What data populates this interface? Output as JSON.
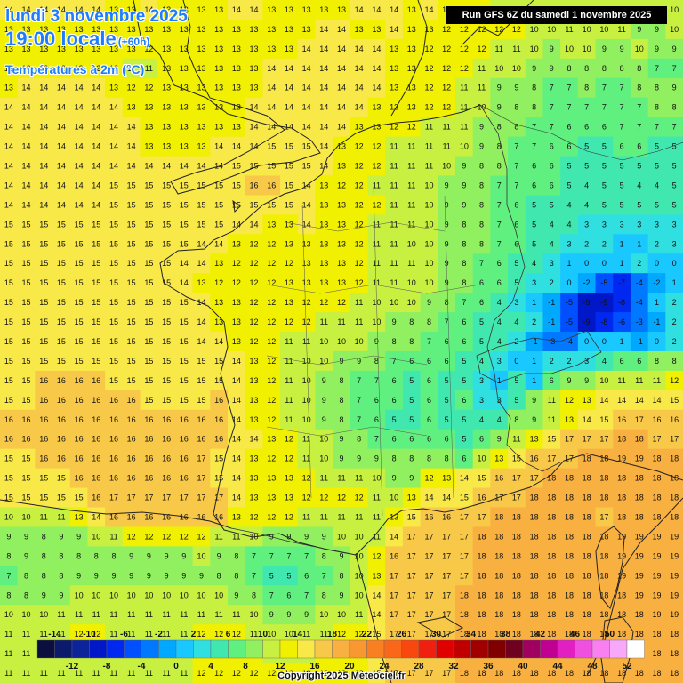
{
  "title": {
    "date": "lundi 3 novembre 2025",
    "time": "19:00 locale",
    "lead": "(+60h)",
    "variable": "Températures à 2m (°C)"
  },
  "run": "Run GFS 6Z du samedi 1 novembre 2025",
  "copyright": "Copyright 2025 Meteociel.fr",
  "legend": {
    "top_labels": [
      "-14",
      "-10",
      "-6",
      "-2",
      "2",
      "6",
      "10",
      "14",
      "18",
      "22",
      "26",
      "30",
      "34",
      "38",
      "42",
      "46",
      "50"
    ],
    "bottom_labels": [
      "-12",
      "-8",
      "-4",
      "0",
      "4",
      "8",
      "12",
      "16",
      "20",
      "24",
      "28",
      "32",
      "36",
      "40",
      "44",
      "48",
      "52"
    ],
    "colors": [
      "#0a0f3d",
      "#0b1a6a",
      "#0c2399",
      "#0018c8",
      "#0028f0",
      "#0050ff",
      "#0078ff",
      "#00a8ff",
      "#18c8ff",
      "#30e0e0",
      "#40e8b0",
      "#60f080",
      "#90f060",
      "#c8f040",
      "#f0f000",
      "#f8e848",
      "#f8c848",
      "#f8b040",
      "#f89830",
      "#f88020",
      "#f86818",
      "#f84810",
      "#f02010",
      "#e00000",
      "#c00000",
      "#a00000",
      "#800000",
      "#700020",
      "#a00060",
      "#c00090",
      "#e020c0",
      "#f050e0",
      "#f880f0",
      "#f8a8f8",
      "#ffffff"
    ]
  },
  "chart_data": {
    "type": "heatmap",
    "title": "Températures à 2m (°C)",
    "grid_spacing_approx": "0.25 deg",
    "sample_rows": {
      "top_row": [
        14,
        14,
        14,
        14,
        14,
        14,
        13,
        13,
        14,
        13,
        13,
        13,
        13,
        14,
        14,
        13,
        13,
        13,
        13,
        13,
        14,
        14,
        14,
        13,
        14,
        13
      ],
      "paris_region": [
        13,
        13,
        13,
        14,
        14,
        14
      ],
      "alps_min": -9,
      "corsica_max": 19,
      "mediterranean_range": [
        16,
        19
      ]
    },
    "grid": [
      [
        14,
        14,
        14,
        14,
        14,
        14,
        13,
        13,
        14,
        13,
        13,
        13,
        13,
        14,
        14,
        13,
        13,
        13,
        13,
        13,
        14,
        14,
        14,
        13,
        14,
        13,
        12,
        12,
        10,
        11,
        10,
        11,
        10,
        10,
        10,
        10,
        11,
        10,
        10
      ],
      [
        13,
        13,
        13,
        13,
        13,
        13,
        13,
        13,
        13,
        13,
        13,
        13,
        13,
        13,
        13,
        13,
        13,
        13,
        14,
        14,
        13,
        13,
        14,
        13,
        13,
        12,
        12,
        12,
        12,
        12,
        10,
        10,
        11,
        10,
        10,
        11,
        9,
        9,
        10
      ],
      [
        13,
        13,
        13,
        13,
        13,
        13,
        13,
        13,
        12,
        13,
        13,
        13,
        13,
        13,
        13,
        13,
        13,
        14,
        14,
        14,
        14,
        14,
        13,
        13,
        12,
        12,
        12,
        12,
        11,
        11,
        10,
        9,
        10,
        10,
        9,
        9,
        10,
        9,
        9
      ],
      [
        12,
        12,
        12,
        12,
        12,
        12,
        12,
        11,
        11,
        13,
        13,
        13,
        13,
        13,
        13,
        14,
        14,
        14,
        14,
        14,
        14,
        14,
        13,
        13,
        12,
        12,
        12,
        11,
        10,
        10,
        9,
        9,
        8,
        8,
        8,
        8,
        8,
        7,
        7
      ],
      [
        13,
        14,
        14,
        14,
        14,
        14,
        13,
        12,
        12,
        13,
        13,
        13,
        13,
        13,
        13,
        14,
        14,
        14,
        14,
        14,
        14,
        14,
        13,
        13,
        12,
        12,
        11,
        11,
        9,
        9,
        8,
        7,
        7,
        8,
        7,
        7,
        8,
        8,
        9
      ],
      [
        14,
        14,
        14,
        14,
        14,
        14,
        14,
        13,
        13,
        13,
        13,
        13,
        13,
        13,
        14,
        14,
        14,
        14,
        14,
        14,
        14,
        13,
        13,
        13,
        12,
        12,
        11,
        10,
        9,
        8,
        8,
        7,
        7,
        7,
        7,
        7,
        7,
        8,
        8
      ],
      [
        14,
        14,
        14,
        14,
        14,
        14,
        14,
        14,
        13,
        13,
        13,
        13,
        13,
        13,
        14,
        14,
        14,
        14,
        14,
        14,
        13,
        13,
        12,
        12,
        11,
        11,
        11,
        9,
        8,
        8,
        7,
        7,
        6,
        6,
        6,
        7,
        7,
        7,
        7
      ],
      [
        14,
        14,
        14,
        14,
        14,
        14,
        14,
        14,
        13,
        13,
        13,
        13,
        14,
        14,
        14,
        15,
        15,
        15,
        14,
        13,
        12,
        12,
        11,
        11,
        11,
        11,
        10,
        9,
        8,
        7,
        7,
        6,
        6,
        5,
        5,
        6,
        6,
        5,
        5
      ],
      [
        14,
        14,
        14,
        14,
        14,
        14,
        14,
        14,
        14,
        14,
        14,
        14,
        14,
        15,
        15,
        15,
        15,
        15,
        14,
        13,
        12,
        12,
        11,
        11,
        11,
        10,
        9,
        8,
        8,
        7,
        6,
        6,
        5,
        5,
        5,
        5,
        5,
        5,
        5
      ],
      [
        14,
        14,
        14,
        14,
        14,
        14,
        15,
        15,
        15,
        15,
        15,
        15,
        15,
        15,
        16,
        16,
        15,
        14,
        13,
        12,
        12,
        11,
        11,
        11,
        10,
        9,
        9,
        8,
        7,
        7,
        6,
        6,
        5,
        4,
        5,
        5,
        4,
        4,
        5
      ],
      [
        14,
        14,
        14,
        14,
        14,
        14,
        15,
        15,
        15,
        15,
        15,
        15,
        15,
        15,
        15,
        15,
        15,
        14,
        13,
        13,
        12,
        12,
        11,
        11,
        10,
        9,
        9,
        8,
        7,
        6,
        5,
        5,
        4,
        4,
        5,
        5,
        5,
        5,
        5
      ],
      [
        15,
        15,
        15,
        15,
        15,
        15,
        15,
        15,
        15,
        15,
        15,
        15,
        15,
        14,
        14,
        13,
        13,
        14,
        13,
        13,
        12,
        11,
        11,
        11,
        10,
        9,
        8,
        8,
        7,
        6,
        5,
        4,
        4,
        3,
        3,
        3,
        3,
        3,
        3
      ],
      [
        15,
        15,
        15,
        15,
        15,
        15,
        15,
        15,
        15,
        15,
        15,
        14,
        14,
        13,
        12,
        12,
        13,
        13,
        13,
        13,
        12,
        11,
        11,
        10,
        10,
        9,
        8,
        8,
        7,
        6,
        5,
        4,
        3,
        2,
        2,
        1,
        1,
        2,
        3
      ],
      [
        15,
        15,
        15,
        15,
        15,
        15,
        15,
        15,
        15,
        15,
        14,
        14,
        13,
        12,
        12,
        12,
        12,
        13,
        13,
        13,
        12,
        11,
        11,
        11,
        10,
        9,
        8,
        7,
        6,
        5,
        4,
        3,
        1,
        0,
        0,
        1,
        2,
        0,
        0
      ],
      [
        15,
        15,
        15,
        15,
        15,
        15,
        15,
        15,
        15,
        15,
        14,
        13,
        12,
        12,
        12,
        12,
        13,
        13,
        13,
        13,
        12,
        11,
        11,
        10,
        10,
        9,
        8,
        6,
        6,
        5,
        3,
        2,
        0,
        -2,
        -5,
        -7,
        -4,
        -2,
        1
      ],
      [
        15,
        15,
        15,
        15,
        15,
        15,
        15,
        15,
        15,
        15,
        15,
        14,
        13,
        13,
        12,
        12,
        13,
        12,
        12,
        12,
        11,
        10,
        10,
        10,
        9,
        8,
        7,
        6,
        4,
        3,
        1,
        -1,
        -5,
        -9,
        -9,
        -8,
        -4,
        1,
        2
      ],
      [
        15,
        15,
        15,
        15,
        15,
        15,
        15,
        15,
        15,
        15,
        15,
        14,
        13,
        13,
        12,
        12,
        12,
        12,
        11,
        11,
        11,
        10,
        9,
        8,
        8,
        7,
        6,
        5,
        4,
        4,
        2,
        -1,
        -5,
        -9,
        -8,
        -6,
        -3,
        -1,
        2
      ],
      [
        15,
        15,
        15,
        15,
        15,
        15,
        15,
        15,
        15,
        15,
        15,
        14,
        14,
        13,
        12,
        12,
        11,
        11,
        10,
        10,
        10,
        9,
        8,
        8,
        7,
        6,
        6,
        5,
        4,
        2,
        -1,
        -3,
        -4,
        0,
        0,
        1,
        -1,
        0,
        2
      ],
      [
        15,
        15,
        15,
        15,
        15,
        15,
        15,
        15,
        15,
        15,
        15,
        15,
        15,
        14,
        13,
        12,
        11,
        10,
        10,
        9,
        9,
        8,
        7,
        6,
        6,
        6,
        5,
        4,
        3,
        0,
        1,
        2,
        2,
        3,
        4,
        6,
        6,
        8,
        8
      ],
      [
        15,
        15,
        16,
        16,
        16,
        16,
        15,
        15,
        15,
        15,
        15,
        15,
        15,
        14,
        13,
        12,
        11,
        10,
        9,
        8,
        7,
        7,
        6,
        5,
        6,
        5,
        5,
        3,
        1,
        5,
        1,
        6,
        9,
        9,
        10,
        11,
        11,
        11,
        12
      ],
      [
        15,
        15,
        16,
        16,
        16,
        16,
        16,
        16,
        15,
        15,
        15,
        15,
        16,
        14,
        13,
        12,
        11,
        10,
        9,
        8,
        7,
        6,
        6,
        5,
        6,
        5,
        6,
        3,
        3,
        5,
        9,
        11,
        12,
        13,
        14,
        14,
        14,
        14,
        15
      ],
      [
        16,
        16,
        16,
        16,
        16,
        16,
        16,
        16,
        16,
        16,
        16,
        16,
        16,
        14,
        13,
        12,
        11,
        10,
        9,
        8,
        7,
        6,
        5,
        5,
        6,
        5,
        5,
        4,
        4,
        8,
        9,
        11,
        13,
        14,
        15,
        16,
        17,
        16,
        16
      ],
      [
        16,
        16,
        16,
        16,
        16,
        16,
        16,
        16,
        16,
        16,
        16,
        16,
        16,
        14,
        14,
        13,
        12,
        11,
        10,
        9,
        8,
        7,
        6,
        6,
        6,
        6,
        5,
        6,
        9,
        11,
        13,
        15,
        17,
        17,
        17,
        18,
        18,
        17,
        17
      ],
      [
        15,
        15,
        16,
        16,
        16,
        16,
        16,
        16,
        16,
        16,
        16,
        17,
        15,
        14,
        13,
        12,
        12,
        11,
        10,
        9,
        9,
        9,
        8,
        8,
        8,
        8,
        6,
        10,
        13,
        15,
        16,
        17,
        17,
        18,
        18,
        19,
        19,
        18,
        18
      ],
      [
        15,
        15,
        15,
        15,
        16,
        16,
        16,
        16,
        16,
        16,
        16,
        17,
        15,
        14,
        13,
        13,
        13,
        12,
        11,
        11,
        11,
        10,
        9,
        9,
        12,
        13,
        14,
        15,
        16,
        17,
        17,
        18,
        18,
        18,
        18,
        18,
        18,
        18,
        18
      ],
      [
        15,
        15,
        15,
        15,
        15,
        16,
        17,
        17,
        17,
        17,
        17,
        17,
        17,
        14,
        13,
        13,
        13,
        12,
        12,
        12,
        12,
        11,
        10,
        13,
        14,
        14,
        15,
        16,
        17,
        17,
        18,
        18,
        18,
        18,
        18,
        18,
        18,
        18,
        18
      ],
      [
        10,
        10,
        11,
        11,
        13,
        14,
        16,
        16,
        16,
        16,
        16,
        16,
        16,
        13,
        12,
        12,
        12,
        11,
        11,
        11,
        11,
        11,
        13,
        15,
        16,
        16,
        17,
        17,
        18,
        18,
        18,
        18,
        18,
        18,
        17,
        18,
        18,
        18,
        18
      ],
      [
        9,
        9,
        8,
        9,
        9,
        10,
        11,
        12,
        12,
        12,
        12,
        12,
        11,
        11,
        10,
        9,
        9,
        9,
        9,
        10,
        10,
        11,
        14,
        17,
        17,
        17,
        17,
        18,
        18,
        18,
        18,
        18,
        18,
        18,
        18,
        19,
        19,
        19,
        19
      ],
      [
        8,
        9,
        8,
        8,
        8,
        8,
        8,
        9,
        9,
        9,
        9,
        10,
        9,
        8,
        7,
        7,
        7,
        7,
        8,
        9,
        10,
        12,
        16,
        17,
        17,
        17,
        17,
        18,
        18,
        18,
        18,
        18,
        18,
        18,
        18,
        19,
        19,
        19,
        19
      ],
      [
        7,
        8,
        8,
        8,
        9,
        9,
        9,
        9,
        9,
        9,
        9,
        9,
        8,
        8,
        7,
        5,
        5,
        6,
        7,
        8,
        10,
        13,
        17,
        17,
        17,
        17,
        17,
        18,
        18,
        18,
        18,
        18,
        18,
        18,
        18,
        19,
        19,
        19,
        19
      ],
      [
        8,
        8,
        9,
        9,
        10,
        10,
        10,
        10,
        10,
        10,
        10,
        10,
        10,
        9,
        8,
        7,
        6,
        7,
        8,
        9,
        10,
        14,
        17,
        17,
        17,
        17,
        18,
        18,
        18,
        18,
        18,
        18,
        18,
        18,
        18,
        18,
        19,
        19,
        19
      ],
      [
        10,
        10,
        10,
        11,
        11,
        11,
        11,
        11,
        11,
        11,
        11,
        11,
        11,
        11,
        10,
        9,
        9,
        9,
        10,
        10,
        11,
        14,
        17,
        17,
        17,
        17,
        18,
        18,
        18,
        18,
        18,
        18,
        18,
        18,
        18,
        18,
        18,
        19,
        19
      ],
      [
        11,
        11,
        11,
        11,
        12,
        12,
        11,
        11,
        11,
        11,
        11,
        12,
        12,
        12,
        11,
        10,
        10,
        11,
        11,
        12,
        12,
        15,
        17,
        17,
        17,
        17,
        18,
        18,
        18,
        18,
        18,
        18,
        18,
        18,
        18,
        18,
        18,
        18,
        18
      ],
      [
        11,
        11,
        11,
        11,
        11,
        11,
        11,
        11,
        11,
        11,
        11,
        12,
        12,
        12,
        12,
        11,
        11,
        11,
        12,
        12,
        13,
        15,
        17,
        17,
        17,
        17,
        18,
        18,
        18,
        18,
        18,
        18,
        18,
        18,
        18,
        18,
        18,
        18,
        18
      ],
      [
        11,
        11,
        11,
        11,
        11,
        11,
        11,
        11,
        11,
        11,
        11,
        12,
        12,
        12,
        12,
        12,
        12,
        12,
        12,
        13,
        13,
        15,
        17,
        17,
        17,
        17,
        18,
        18,
        18,
        18,
        18,
        18,
        18,
        18,
        18,
        18,
        18,
        18,
        18
      ]
    ]
  }
}
